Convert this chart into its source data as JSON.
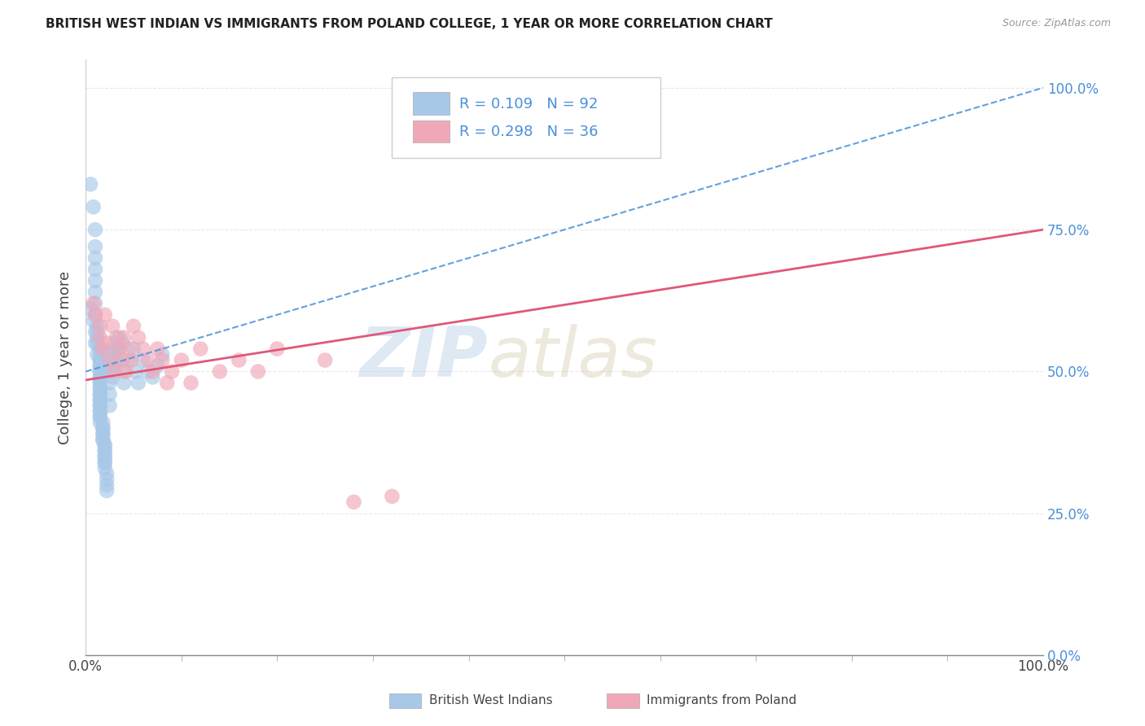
{
  "title": "BRITISH WEST INDIAN VS IMMIGRANTS FROM POLAND COLLEGE, 1 YEAR OR MORE CORRELATION CHART",
  "source": "Source: ZipAtlas.com",
  "ylabel": "College, 1 year or more",
  "legend_labels": [
    "British West Indians",
    "Immigrants from Poland"
  ],
  "R_blue": 0.109,
  "N_blue": 92,
  "R_pink": 0.298,
  "N_pink": 36,
  "blue_color": "#a8c8e8",
  "pink_color": "#f0a8b8",
  "blue_line_color": "#4a90d9",
  "pink_line_color": "#e05878",
  "blue_scatter_x": [
    0.005,
    0.008,
    0.01,
    0.01,
    0.01,
    0.01,
    0.01,
    0.01,
    0.01,
    0.01,
    0.012,
    0.012,
    0.012,
    0.012,
    0.015,
    0.015,
    0.015,
    0.015,
    0.015,
    0.015,
    0.015,
    0.015,
    0.015,
    0.015,
    0.015,
    0.015,
    0.015,
    0.015,
    0.015,
    0.015,
    0.015,
    0.015,
    0.015,
    0.015,
    0.015,
    0.015,
    0.015,
    0.015,
    0.015,
    0.015,
    0.018,
    0.018,
    0.018,
    0.018,
    0.018,
    0.018,
    0.018,
    0.02,
    0.02,
    0.02,
    0.02,
    0.02,
    0.02,
    0.02,
    0.02,
    0.02,
    0.022,
    0.022,
    0.022,
    0.022,
    0.025,
    0.025,
    0.025,
    0.025,
    0.025,
    0.028,
    0.028,
    0.028,
    0.03,
    0.03,
    0.03,
    0.032,
    0.032,
    0.035,
    0.035,
    0.038,
    0.04,
    0.04,
    0.045,
    0.05,
    0.052,
    0.055,
    0.06,
    0.065,
    0.07,
    0.075,
    0.08,
    0.005,
    0.008,
    0.01,
    0.01,
    0.012
  ],
  "blue_scatter_y": [
    0.83,
    0.79,
    0.75,
    0.72,
    0.7,
    0.68,
    0.66,
    0.64,
    0.62,
    0.6,
    0.58,
    0.57,
    0.56,
    0.55,
    0.54,
    0.54,
    0.53,
    0.52,
    0.52,
    0.51,
    0.51,
    0.5,
    0.5,
    0.49,
    0.49,
    0.48,
    0.48,
    0.47,
    0.47,
    0.46,
    0.46,
    0.45,
    0.45,
    0.44,
    0.44,
    0.43,
    0.43,
    0.42,
    0.42,
    0.41,
    0.41,
    0.4,
    0.4,
    0.39,
    0.39,
    0.38,
    0.38,
    0.37,
    0.37,
    0.36,
    0.36,
    0.35,
    0.35,
    0.34,
    0.34,
    0.33,
    0.32,
    0.31,
    0.3,
    0.29,
    0.52,
    0.5,
    0.48,
    0.46,
    0.44,
    0.53,
    0.51,
    0.49,
    0.55,
    0.53,
    0.51,
    0.54,
    0.52,
    0.56,
    0.54,
    0.55,
    0.5,
    0.48,
    0.52,
    0.54,
    0.5,
    0.48,
    0.52,
    0.5,
    0.49,
    0.51,
    0.53,
    0.61,
    0.59,
    0.57,
    0.55,
    0.53
  ],
  "pink_scatter_x": [
    0.008,
    0.01,
    0.015,
    0.015,
    0.018,
    0.02,
    0.022,
    0.025,
    0.028,
    0.03,
    0.032,
    0.035,
    0.038,
    0.04,
    0.042,
    0.045,
    0.048,
    0.05,
    0.055,
    0.06,
    0.065,
    0.07,
    0.075,
    0.08,
    0.085,
    0.09,
    0.1,
    0.11,
    0.12,
    0.14,
    0.16,
    0.18,
    0.2,
    0.25,
    0.28,
    0.32
  ],
  "pink_scatter_y": [
    0.62,
    0.6,
    0.58,
    0.56,
    0.54,
    0.6,
    0.55,
    0.52,
    0.58,
    0.5,
    0.56,
    0.54,
    0.52,
    0.56,
    0.5,
    0.54,
    0.52,
    0.58,
    0.56,
    0.54,
    0.52,
    0.5,
    0.54,
    0.52,
    0.48,
    0.5,
    0.52,
    0.48,
    0.54,
    0.5,
    0.52,
    0.5,
    0.54,
    0.52,
    0.27,
    0.28
  ],
  "blue_trendline": [
    0.0,
    1.0,
    0.5,
    1.0
  ],
  "pink_trendline": [
    0.0,
    1.0,
    0.485,
    0.75
  ],
  "xlim": [
    0.0,
    1.0
  ],
  "ylim": [
    0.0,
    1.05
  ],
  "ytick_positions": [
    0.0,
    0.25,
    0.5,
    0.75,
    1.0
  ],
  "ytick_labels": [
    "0.0%",
    "25.0%",
    "50.0%",
    "75.0%",
    "100.0%"
  ],
  "xtick_minor_positions": [
    0.0,
    0.1,
    0.2,
    0.3,
    0.4,
    0.5,
    0.6,
    0.7,
    0.8,
    0.9,
    1.0
  ],
  "xtick_labels_major": [
    "0.0%",
    "100.0%"
  ],
  "watermark_zip": "ZIP",
  "watermark_atlas": "atlas",
  "background_color": "#ffffff",
  "grid_color": "#e8e8e8"
}
